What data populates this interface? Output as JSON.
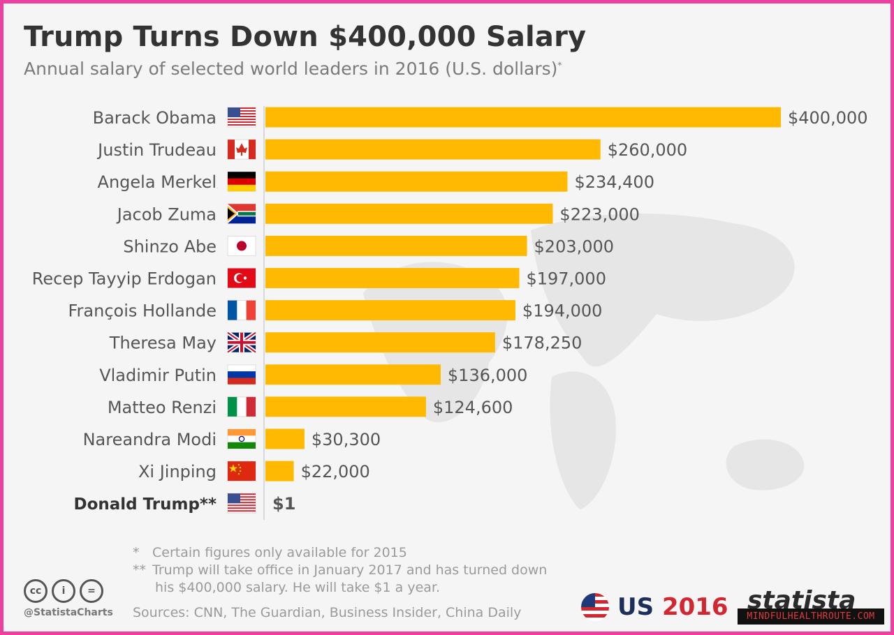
{
  "header": {
    "title": "Trump Turns Down $400,000 Salary",
    "subtitle": "Annual salary of selected world leaders in 2016 (U.S. dollars)",
    "subtitle_mark": "*"
  },
  "chart_data": {
    "type": "bar",
    "orientation": "horizontal",
    "title": "Trump Turns Down $400,000 Salary",
    "subtitle": "Annual salary of selected world leaders in 2016 (U.S. dollars)*",
    "categories": [
      "Barack Obama",
      "Justin Trudeau",
      "Angela Merkel",
      "Jacob Zuma",
      "Shinzo Abe",
      "Recep Tayyip Erdogan",
      "François Hollande",
      "Theresa May",
      "Vladimir Putin",
      "Matteo Renzi",
      "Nareandra Modi",
      "Xi Jinping",
      "Donald Trump**"
    ],
    "values": [
      400000,
      260000,
      234400,
      223000,
      203000,
      197000,
      194000,
      178250,
      136000,
      124600,
      30300,
      22000,
      1
    ],
    "value_labels": [
      "$400,000",
      "$260,000",
      "$234,400",
      "$223,000",
      "$203,000",
      "$197,000",
      "$194,000",
      "$178,250",
      "$136,000",
      "$124,600",
      "$30,300",
      "$22,000",
      "$1"
    ],
    "flags": [
      "us-flag-icon",
      "canada-flag-icon",
      "germany-flag-icon",
      "south-africa-flag-icon",
      "japan-flag-icon",
      "turkey-flag-icon",
      "france-flag-icon",
      "uk-flag-icon",
      "russia-flag-icon",
      "italy-flag-icon",
      "india-flag-icon",
      "china-flag-icon",
      "us-flag-icon"
    ],
    "highlight": "Donald Trump**",
    "bar_color": "#ffb900",
    "xlim": [
      0,
      400000
    ],
    "grid": false,
    "legend": "none"
  },
  "footnotes": {
    "note1_mark": "*",
    "note1": "Certain figures only available for 2015",
    "note2_mark": "**",
    "note2_line1": "Trump will take office in January 2017 and has turned down",
    "note2_line2": "his $400,000 salary. He will take $1 a year."
  },
  "footer": {
    "sources": "Sources: CNN, The Guardian, Business Insider, China Daily",
    "handle": "@StatistaCharts",
    "cc_icons": [
      "cc",
      "i",
      "="
    ],
    "badge_prefix": "US",
    "badge_year": "2016",
    "brand": "statista",
    "watermark": "MINDFULHEALTHROUTE.COM"
  },
  "colors": {
    "bar": "#ffb900",
    "title": "#333333",
    "subtitle": "#7a7a7a",
    "border": "#ec3fa0"
  }
}
